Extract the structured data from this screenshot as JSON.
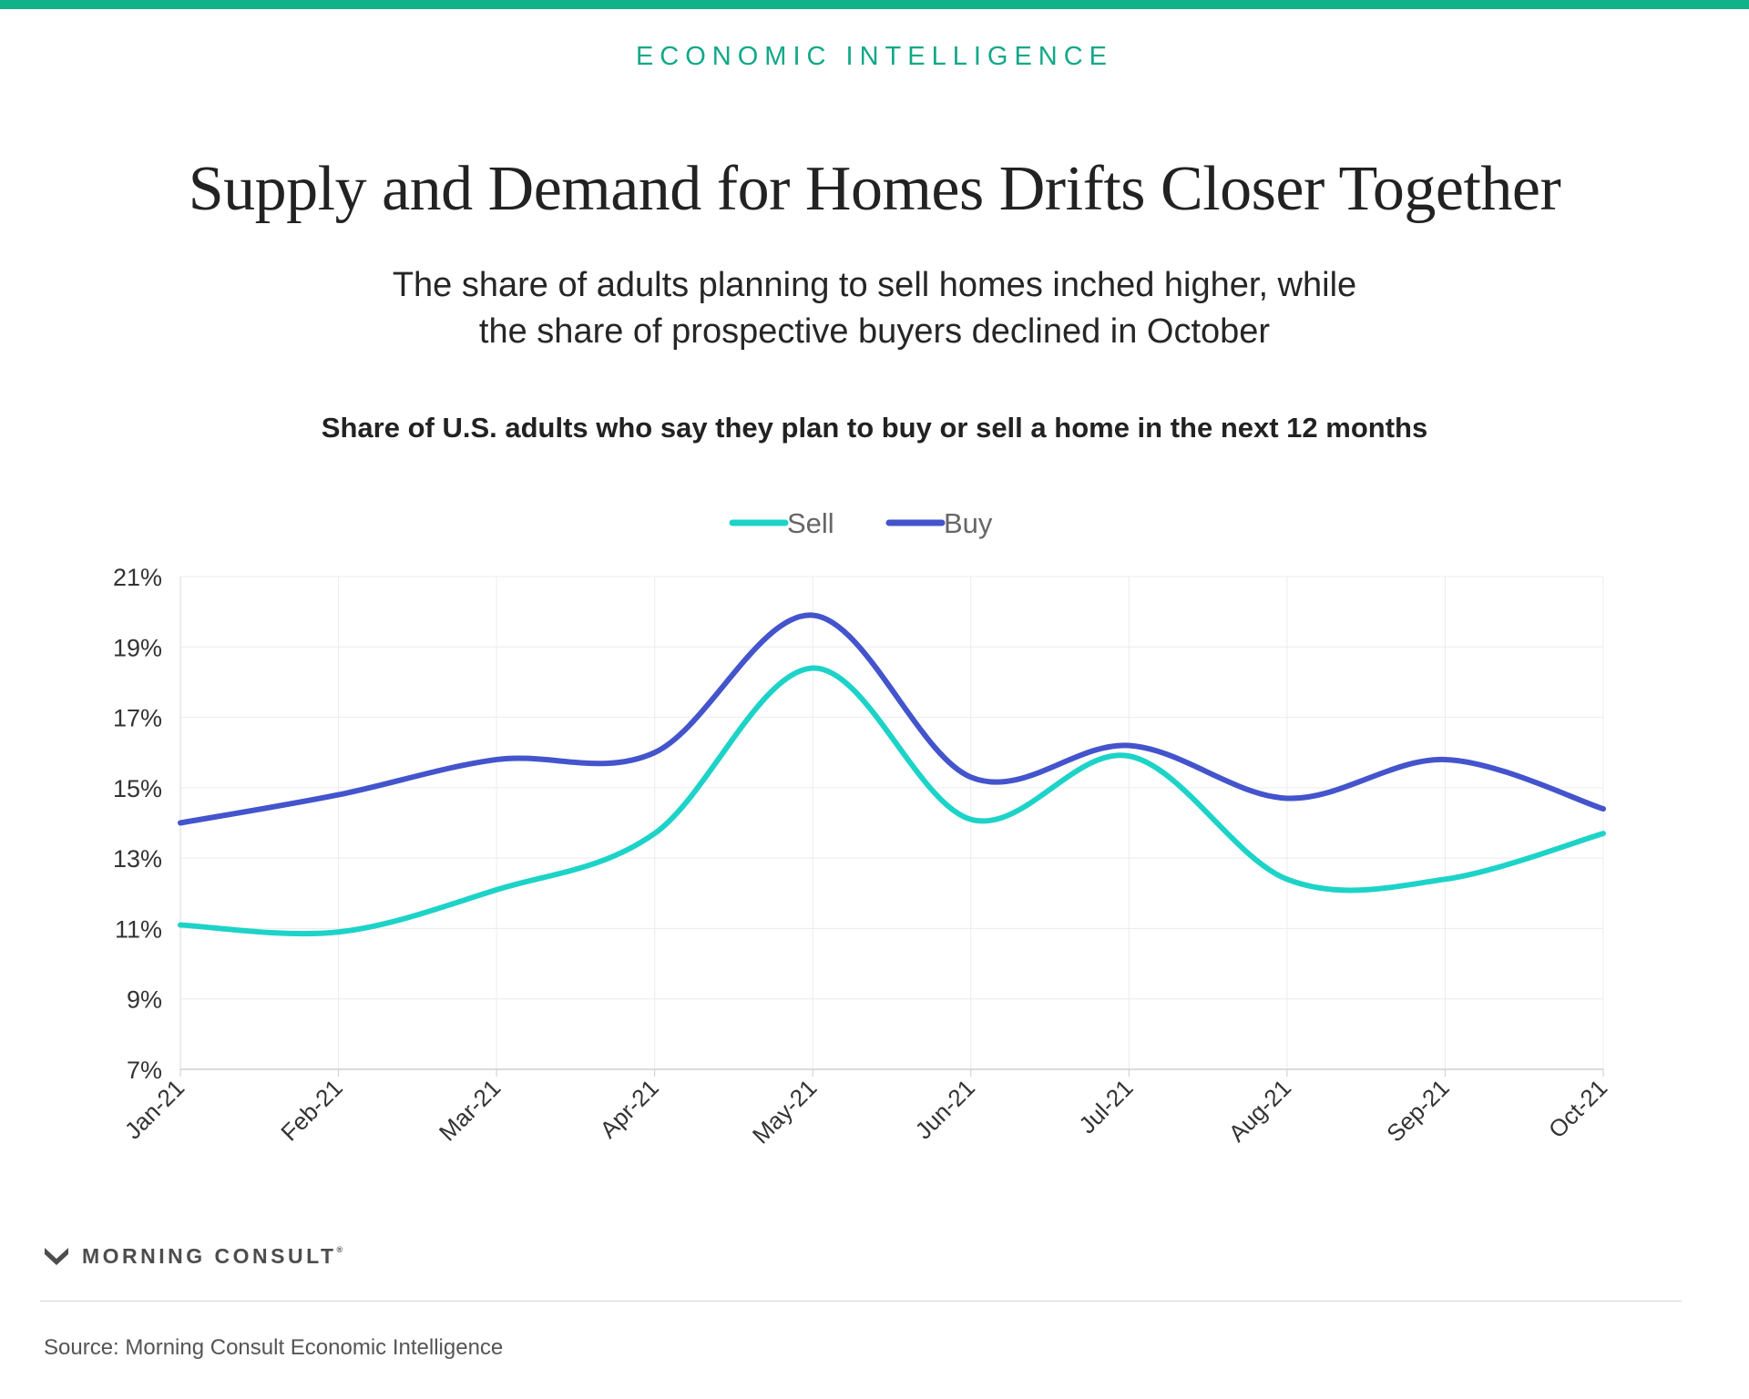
{
  "header": {
    "kicker": "ECONOMIC INTELLIGENCE",
    "title": "Supply and Demand for Homes Drifts Closer Together",
    "subtitle_line1": "The share of adults planning to sell homes inched higher, while",
    "subtitle_line2": "the share of prospective buyers declined in October"
  },
  "chart_heading": "Share of U.S. adults who say they plan to buy or sell a home in the next 12 months",
  "chart_data": {
    "type": "line",
    "x": [
      "Jan-21",
      "Feb-21",
      "Mar-21",
      "Apr-21",
      "May-21",
      "Jun-21",
      "Jul-21",
      "Aug-21",
      "Sep-21",
      "Oct-21"
    ],
    "series": [
      {
        "name": "Sell",
        "color": "#1dd3c8",
        "values": [
          11.1,
          10.9,
          12.1,
          13.7,
          18.4,
          14.1,
          15.9,
          12.4,
          12.4,
          13.7
        ]
      },
      {
        "name": "Buy",
        "color": "#4354cc",
        "values": [
          14.0,
          14.8,
          15.8,
          16.0,
          19.9,
          15.3,
          16.2,
          14.7,
          15.8,
          14.4
        ]
      }
    ],
    "y_ticks": [
      "7%",
      "9%",
      "11%",
      "13%",
      "15%",
      "17%",
      "19%",
      "21%"
    ],
    "y_tick_values": [
      7,
      9,
      11,
      13,
      15,
      17,
      19,
      21
    ],
    "ylim": [
      7,
      21
    ],
    "grid": true,
    "legend_position": "top-center",
    "title": "",
    "xlabel": "",
    "ylabel": ""
  },
  "footer": {
    "brand": "MORNING CONSULT",
    "brand_mark": "®",
    "source": "Source: Morning Consult Economic Intelligence"
  }
}
